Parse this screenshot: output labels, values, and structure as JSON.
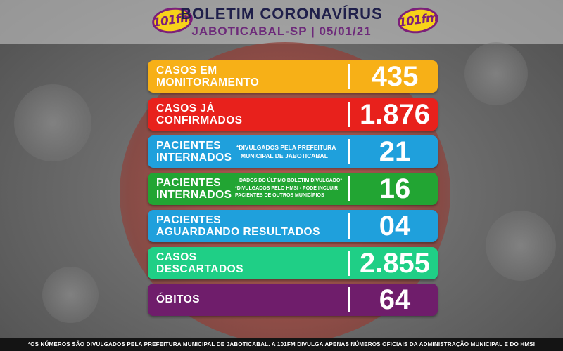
{
  "header": {
    "title": "BOLETIM CORONAVÍRUS",
    "subtitle": "JABOTICABAL-SP | 05/01/21",
    "logo_text": "101fm"
  },
  "rows": [
    {
      "label_line1": "CASOS EM",
      "label_line2": "MONITORAMENTO",
      "value": "435",
      "color": "#f7b017"
    },
    {
      "label_line1": "CASOS JÁ",
      "label_line2": "CONFIRMADOS",
      "value": "1.876",
      "color": "#e8211c"
    },
    {
      "label_line1": "PACIENTES",
      "label_line2": "INTERNADOS",
      "note_line1": "*DIVULGADOS PELA PREFEITURA",
      "note_line2": "MUNICIPAL DE JABOTICABAL",
      "value": "21",
      "color": "#1fa0dc"
    },
    {
      "label_line1": "PACIENTES",
      "label_line2": "INTERNADOS",
      "note_line1": "DADOS DO ÚLTIMO BOLETIM DIVULGADO*",
      "note_line2": "*DIVULGADOS PELO HMSI - PODE INCLUIR",
      "note_line3": "PACIENTES DE OUTROS MUNICÍPIOS",
      "value": "16",
      "color": "#22a533"
    },
    {
      "label_line1": "PACIENTES",
      "label_line2": "AGUARDANDO RESULTADOS",
      "value": "04",
      "color": "#1fa0dc"
    },
    {
      "label_line1": "CASOS",
      "label_line2": "DESCARTADOS",
      "value": "2.855",
      "color": "#1fcf86"
    },
    {
      "label_line1": "ÓBITOS",
      "value": "64",
      "color": "#6f1d6b"
    }
  ],
  "footer": {
    "text": "*OS NÚMEROS SÃO DIVULGADOS PELA PREFEITURA MUNICIPAL DE JABOTICABAL. A 101FM DIVULGA APENAS NÚMEROS OFICIAIS DA ADMINISTRAÇÃO MUNICIPAL E DO HMSI"
  }
}
